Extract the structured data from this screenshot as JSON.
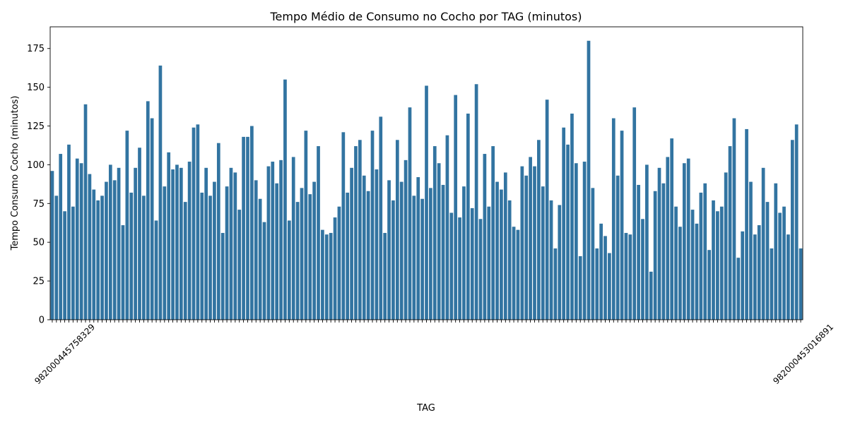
{
  "chart_data": {
    "type": "bar",
    "title": "Tempo Médio de Consumo no Cocho por TAG (minutos)",
    "xlabel": "TAG",
    "ylabel": "Tempo Consumo Cocho (minutos)",
    "ylim": [
      0,
      189
    ],
    "yticks": [
      0,
      25,
      50,
      75,
      100,
      125,
      150,
      175
    ],
    "tick_label_rotation_deg": 45,
    "bar_color": "#3274a1",
    "legend": "none",
    "grid": false,
    "first_category_label": "982000445758329",
    "last_category_label": "982000453016891",
    "values": [
      96,
      80,
      107,
      70,
      113,
      73,
      104,
      101,
      139,
      94,
      84,
      77,
      80,
      89,
      100,
      90,
      98,
      61,
      122,
      82,
      98,
      111,
      80,
      141,
      130,
      64,
      164,
      86,
      108,
      97,
      100,
      98,
      76,
      102,
      124,
      126,
      82,
      98,
      80,
      89,
      114,
      56,
      86,
      98,
      95,
      71,
      118,
      118,
      125,
      90,
      78,
      63,
      99,
      102,
      88,
      103,
      155,
      64,
      105,
      76,
      85,
      122,
      81,
      89,
      112,
      58,
      55,
      56,
      66,
      73,
      121,
      82,
      98,
      112,
      116,
      93,
      83,
      122,
      97,
      131,
      56,
      90,
      77,
      116,
      89,
      103,
      137,
      80,
      92,
      78,
      151,
      85,
      112,
      101,
      87,
      119,
      69,
      145,
      66,
      86,
      133,
      72,
      152,
      65,
      107,
      73,
      112,
      89,
      84,
      95,
      77,
      60,
      58,
      99,
      93,
      105,
      99,
      116,
      86,
      142,
      77,
      46,
      74,
      124,
      113,
      133,
      101,
      41,
      102,
      180,
      85,
      46,
      62,
      54,
      43,
      130,
      93,
      122,
      56,
      55,
      137,
      87,
      65,
      100,
      31,
      83,
      98,
      88,
      105,
      117,
      73,
      60,
      101,
      104,
      71,
      62,
      82,
      88,
      45,
      77,
      70,
      73,
      95,
      112,
      130,
      40,
      57,
      123,
      89,
      55,
      61,
      98,
      76,
      46,
      88,
      69,
      73,
      55,
      116,
      126,
      46
    ]
  }
}
